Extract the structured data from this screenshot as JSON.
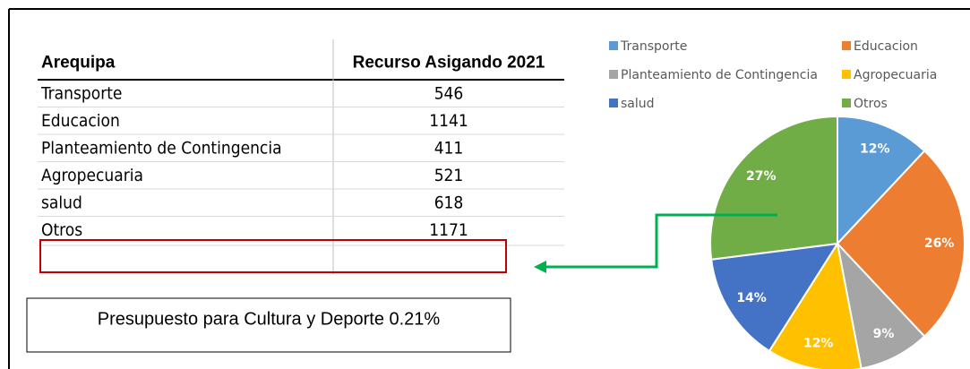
{
  "table": {
    "headers": [
      "Arequipa",
      "Recurso Asigando 2021"
    ],
    "rows": [
      [
        "Transporte",
        546
      ],
      [
        "Educacion",
        1141
      ],
      [
        "Planteamiento de Contingencia",
        411
      ],
      [
        "Agropecuaria",
        521
      ],
      [
        "salud",
        618
      ],
      [
        "Otros",
        1171
      ]
    ]
  },
  "note": "Presupuesto para Cultura y Deporte  0.21%",
  "chart_data": {
    "type": "pie",
    "categories": [
      "Transporte",
      "Educacion",
      "Planteamiento de Contingencia",
      "Agropecuaria",
      "salud",
      "Otros"
    ],
    "values": [
      12,
      26,
      9,
      12,
      14,
      27
    ],
    "value_labels": [
      "12%",
      "26%",
      "9%",
      "12%",
      "14%",
      "27%"
    ],
    "colors": [
      "#5b9bd5",
      "#ed7d31",
      "#a5a5a5",
      "#ffc000",
      "#4472c4",
      "#70ad47"
    ]
  }
}
